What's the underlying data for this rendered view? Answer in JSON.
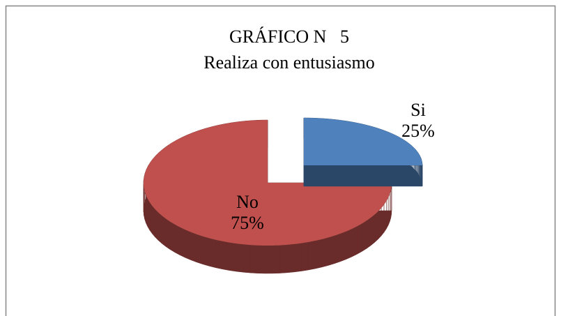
{
  "chart_data": {
    "type": "pie",
    "title": "GRÁFICO N   5",
    "subtitle": "Realiza con entusiasmo",
    "categories": [
      "Si",
      "No"
    ],
    "values": [
      25,
      75
    ],
    "value_labels": [
      "25%",
      "75%"
    ],
    "colors": [
      "#4f81bd",
      "#c0504d"
    ]
  }
}
